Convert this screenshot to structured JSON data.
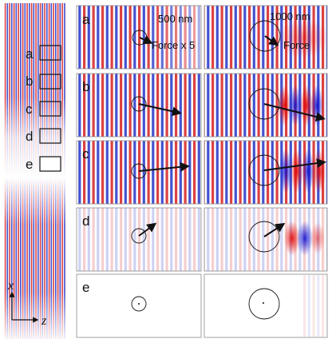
{
  "figure": {
    "size_labels": [
      "500 nm",
      "1000 nm"
    ],
    "force_label_small": "Force x 5",
    "force_label_large": "Force",
    "panel_letters": [
      "a",
      "b",
      "c",
      "d",
      "e"
    ],
    "axis_x": "x",
    "axis_z": "z",
    "colors": {
      "red": "#d62020",
      "blue": "#2234c8",
      "background": "#ffffff",
      "panel_border": "#8a8a8a"
    }
  }
}
